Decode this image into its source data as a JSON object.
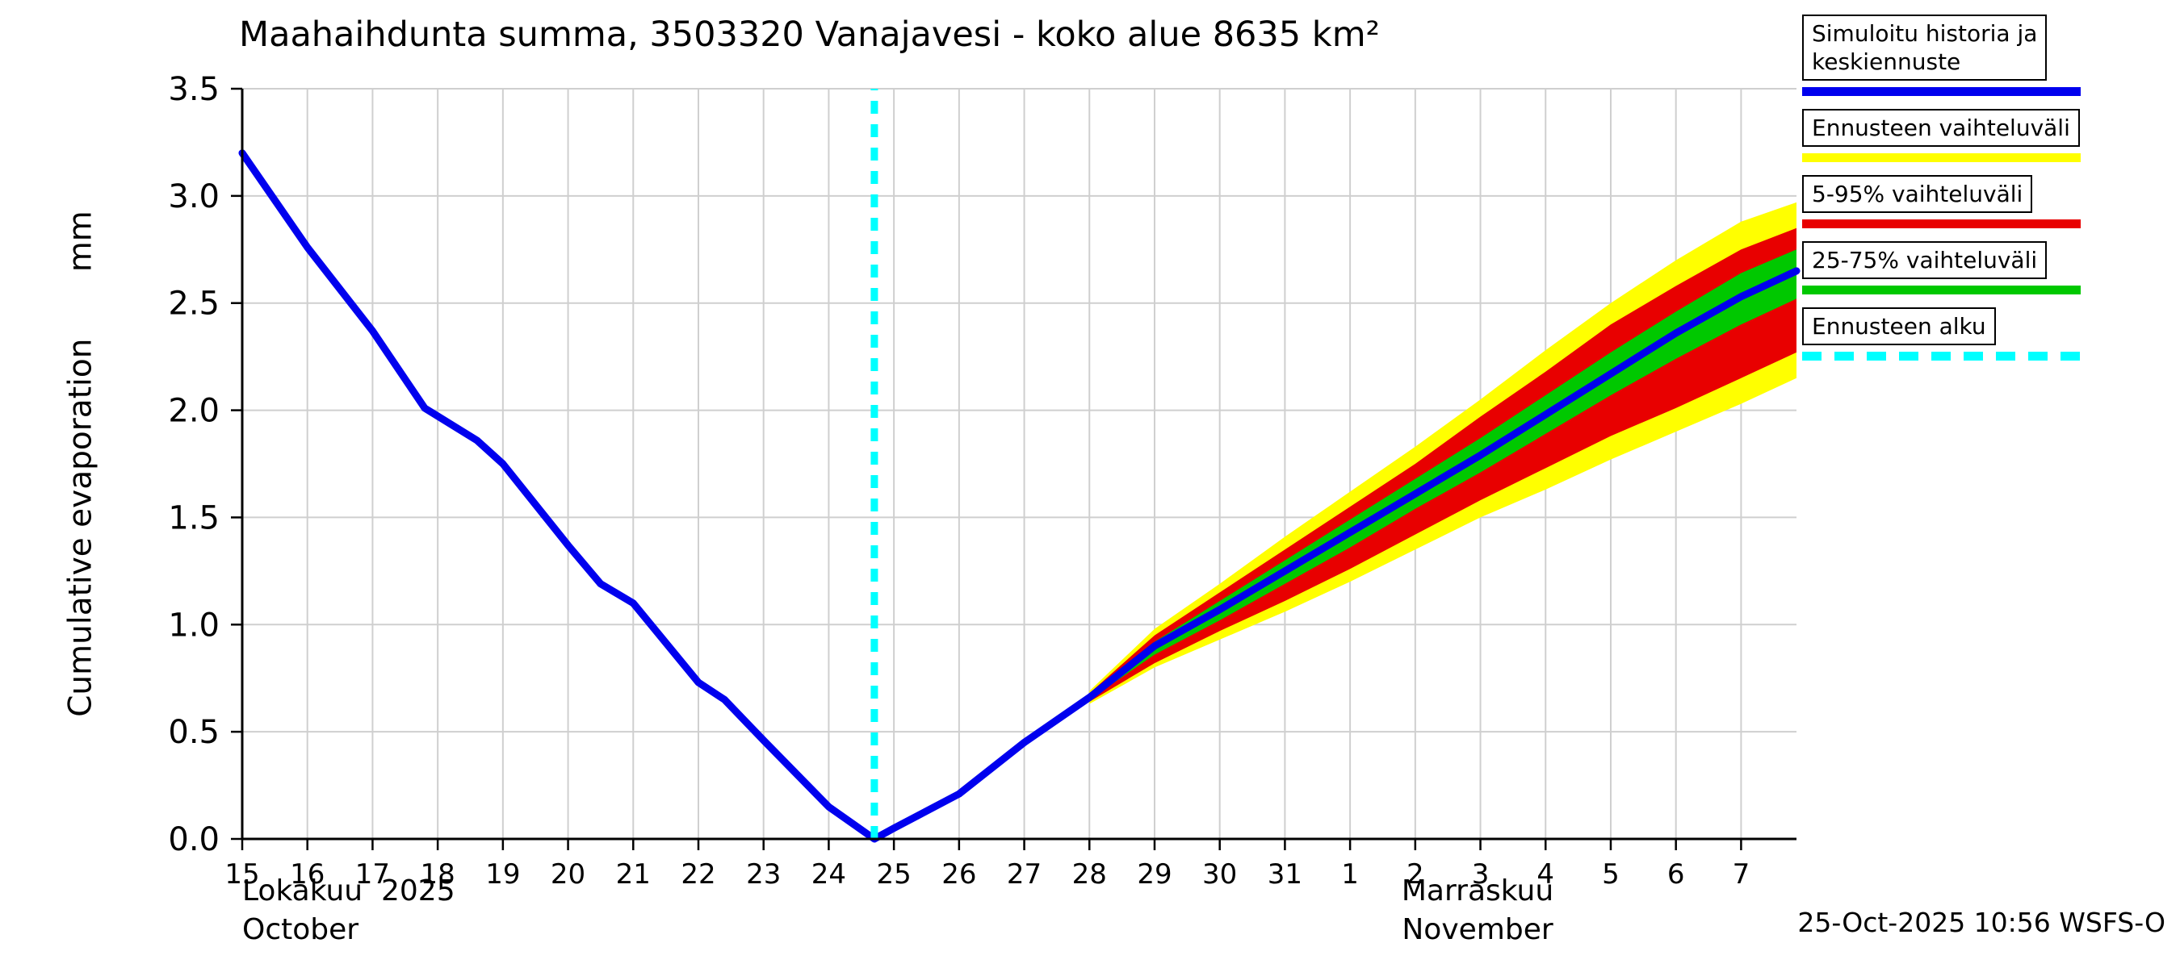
{
  "chart_data": {
    "type": "line",
    "title": "Maahaihdunta summa, 3503320 Vanajavesi - koko alue 8635 km²",
    "ylabel": {
      "text": "Cumulative evaporation",
      "unit": "mm"
    },
    "footer": "25-Oct-2025 10:56 WSFS-O",
    "months": {
      "october_fi": "Lokakuu  2025",
      "october_en": "October",
      "november_fi": "Marraskuu",
      "november_en": "November"
    },
    "ylim": [
      0.0,
      3.5
    ],
    "xlim": [
      15,
      38.85
    ],
    "y_ticks": [
      0.0,
      0.5,
      1.0,
      1.5,
      2.0,
      2.5,
      3.0,
      3.5
    ],
    "x_ticks": [
      {
        "x": 15,
        "label": "15"
      },
      {
        "x": 16,
        "label": "16"
      },
      {
        "x": 17,
        "label": "17"
      },
      {
        "x": 18,
        "label": "18"
      },
      {
        "x": 19,
        "label": "19"
      },
      {
        "x": 20,
        "label": "20"
      },
      {
        "x": 21,
        "label": "21"
      },
      {
        "x": 22,
        "label": "22"
      },
      {
        "x": 23,
        "label": "23"
      },
      {
        "x": 24,
        "label": "24"
      },
      {
        "x": 25,
        "label": "25"
      },
      {
        "x": 26,
        "label": "26"
      },
      {
        "x": 27,
        "label": "27"
      },
      {
        "x": 28,
        "label": "28"
      },
      {
        "x": 29,
        "label": "29"
      },
      {
        "x": 30,
        "label": "30"
      },
      {
        "x": 31,
        "label": "31"
      },
      {
        "x": 32,
        "label": "1"
      },
      {
        "x": 33,
        "label": "2"
      },
      {
        "x": 34,
        "label": "3"
      },
      {
        "x": 35,
        "label": "4"
      },
      {
        "x": 36,
        "label": "5"
      },
      {
        "x": 37,
        "label": "6"
      },
      {
        "x": 38,
        "label": "7"
      }
    ],
    "forecast_start_x": 24.7,
    "colors": {
      "grid": "#cfcfcf",
      "history": "#0000ee",
      "minmax": "#ffff00",
      "p5_95": "#e80000",
      "p25_75": "#00c800",
      "forecast_start": "#00ffff"
    },
    "series": {
      "median": {
        "name": "Simuloitu historia ja keskiennuste",
        "color": "#0000ee",
        "x": [
          15,
          16,
          17,
          17.8,
          18.6,
          19,
          20,
          20.5,
          21,
          22,
          22.4,
          23,
          24,
          24.7,
          25,
          26,
          27,
          28,
          29,
          30,
          31,
          32,
          33,
          34,
          35,
          36,
          37,
          38,
          38.85
        ],
        "y": [
          3.2,
          2.76,
          2.37,
          2.01,
          1.86,
          1.75,
          1.37,
          1.19,
          1.1,
          0.73,
          0.65,
          0.46,
          0.15,
          0.0,
          0.05,
          0.21,
          0.45,
          0.66,
          0.9,
          1.07,
          1.25,
          1.43,
          1.61,
          1.79,
          1.98,
          2.17,
          2.36,
          2.53,
          2.65
        ]
      },
      "bands": [
        {
          "id": "minmax",
          "name": "Ennusteen vaihteluväli",
          "color": "#ffff00",
          "x": [
            28,
            29,
            30,
            31,
            32,
            33,
            34,
            35,
            36,
            37,
            38,
            38.85
          ],
          "low": [
            0.63,
            0.8,
            0.93,
            1.06,
            1.2,
            1.35,
            1.5,
            1.63,
            1.77,
            1.9,
            2.03,
            2.15
          ],
          "high": [
            0.69,
            0.98,
            1.19,
            1.41,
            1.62,
            1.83,
            2.05,
            2.28,
            2.5,
            2.7,
            2.88,
            2.97
          ]
        },
        {
          "id": "p5-95",
          "name": "5-95% vaihteluväli",
          "color": "#e80000",
          "x": [
            28,
            29,
            30,
            31,
            32,
            33,
            34,
            35,
            36,
            37,
            38,
            38.85
          ],
          "low": [
            0.64,
            0.82,
            0.97,
            1.11,
            1.26,
            1.42,
            1.58,
            1.73,
            1.88,
            2.01,
            2.15,
            2.27
          ],
          "high": [
            0.68,
            0.95,
            1.15,
            1.35,
            1.55,
            1.75,
            1.97,
            2.18,
            2.4,
            2.58,
            2.75,
            2.85
          ]
        },
        {
          "id": "p25-75",
          "name": "25-75% vaihteluväli",
          "color": "#00c800",
          "x": [
            28,
            29,
            30,
            31,
            32,
            33,
            34,
            35,
            36,
            37,
            38,
            38.85
          ],
          "low": [
            0.65,
            0.86,
            1.02,
            1.19,
            1.36,
            1.54,
            1.71,
            1.89,
            2.07,
            2.24,
            2.4,
            2.52
          ],
          "high": [
            0.67,
            0.92,
            1.11,
            1.3,
            1.49,
            1.68,
            1.87,
            2.07,
            2.27,
            2.46,
            2.64,
            2.75
          ]
        }
      ]
    }
  },
  "legend": {
    "items": [
      {
        "lines": [
          "Simuloitu historia ja",
          "keskiennuste"
        ],
        "color": "#0000ee",
        "dashed": false
      },
      {
        "lines": [
          "Ennusteen vaihteluväli"
        ],
        "color": "#ffff00",
        "dashed": false
      },
      {
        "lines": [
          "5-95% vaihteluväli"
        ],
        "color": "#e80000",
        "dashed": false
      },
      {
        "lines": [
          "25-75% vaihteluväli"
        ],
        "color": "#00c800",
        "dashed": false
      },
      {
        "lines": [
          "Ennusteen alku"
        ],
        "color": "#00ffff",
        "dashed": true
      }
    ]
  }
}
